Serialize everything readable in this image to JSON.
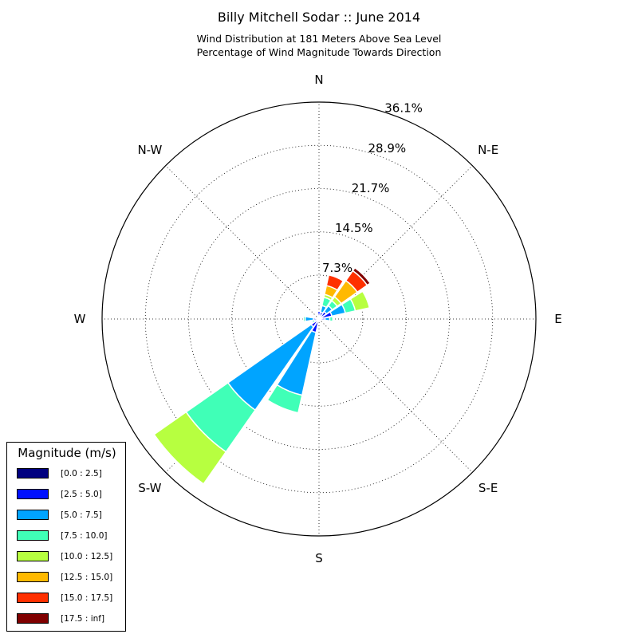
{
  "chart_data": {
    "type": "windrose",
    "title": "Billy Mitchell Sodar :: June 2014",
    "subtitle_lines": [
      "Wind Distribution at 181 Meters Above Sea Level",
      "Percentage of Wind Magnitude Towards Direction"
    ],
    "radial_unit": "%",
    "radial_ticks": [
      "7.3%",
      "14.5%",
      "21.7%",
      "28.9%",
      "36.1%"
    ],
    "radial_tick_values": [
      7.3,
      14.5,
      21.7,
      28.9,
      36.1
    ],
    "radial_max": 36.1,
    "direction_labels": [
      "N",
      "N-E",
      "E",
      "S-E",
      "S",
      "S-W",
      "W",
      "N-W"
    ],
    "legend": {
      "title": "Magnitude (m/s)",
      "bins": [
        "[0.0 : 2.5]",
        "[2.5 : 5.0]",
        "[5.0 : 7.5]",
        "[7.5 : 10.0]",
        "[10.0 : 12.5]",
        "[12.5 : 15.0]",
        "[15.0 : 17.5]",
        "[17.5 : inf]"
      ],
      "colors": [
        "#000080",
        "#0010ff",
        "#00a4ff",
        "#40ffb7",
        "#b7ff40",
        "#ffb900",
        "#ff3000",
        "#800000"
      ]
    },
    "series_unit": "cumulative percent at outer edge of each magnitude bin",
    "sectors": [
      {
        "direction_deg": 0,
        "cumulative": [
          0.3,
          1.3,
          1.3,
          1.3,
          1.3,
          1.3,
          1.3,
          1.3
        ]
      },
      {
        "direction_deg": 22.5,
        "cumulative": [
          0.3,
          1.2,
          2.3,
          3.7,
          4.2,
          5.7,
          7.5,
          7.5
        ]
      },
      {
        "direction_deg": 45,
        "cumulative": [
          0.3,
          1.5,
          2.7,
          3.7,
          4.5,
          7.8,
          9.8,
          10.4
        ]
      },
      {
        "direction_deg": 67.5,
        "cumulative": [
          0.3,
          2.2,
          4.5,
          6.2,
          8.6,
          8.6,
          8.6,
          8.6
        ]
      },
      {
        "direction_deg": 90,
        "cumulative": [
          0.3,
          1.0,
          1.8,
          2.3,
          2.3,
          2.3,
          2.3,
          2.3
        ]
      },
      {
        "direction_deg": 112.5,
        "cumulative": [
          0.3,
          0.3,
          0.3,
          0.3,
          0.3,
          0.3,
          0.3,
          0.3
        ]
      },
      {
        "direction_deg": 135,
        "cumulative": [
          0.3,
          0.3,
          0.3,
          0.3,
          0.3,
          0.3,
          0.3,
          0.3
        ]
      },
      {
        "direction_deg": 157.5,
        "cumulative": [
          0.3,
          0.3,
          0.3,
          0.3,
          0.3,
          0.3,
          0.3,
          0.3
        ]
      },
      {
        "direction_deg": 180,
        "cumulative": [
          0.3,
          0.3,
          0.3,
          0.3,
          0.3,
          0.3,
          0.3,
          0.3
        ]
      },
      {
        "direction_deg": 202.5,
        "cumulative": [
          0.3,
          2.3,
          13.0,
          16.0,
          16.0,
          16.0,
          16.0,
          16.0
        ]
      },
      {
        "direction_deg": 225,
        "cumulative": [
          0.3,
          1.6,
          18.5,
          27.0,
          33.5,
          33.5,
          33.5,
          33.5
        ]
      },
      {
        "direction_deg": 247.5,
        "cumulative": [
          0.3,
          0.5,
          0.8,
          1.2,
          1.2,
          1.2,
          1.2,
          1.2
        ]
      },
      {
        "direction_deg": 270,
        "cumulative": [
          0.3,
          0.9,
          2.3,
          2.6,
          2.6,
          2.6,
          2.6,
          2.6
        ]
      },
      {
        "direction_deg": 292.5,
        "cumulative": [
          0.3,
          0.3,
          0.3,
          0.3,
          0.3,
          0.3,
          0.3,
          0.3
        ]
      },
      {
        "direction_deg": 315,
        "cumulative": [
          0.3,
          0.3,
          0.3,
          0.3,
          0.3,
          0.3,
          0.3,
          0.3
        ]
      },
      {
        "direction_deg": 337.5,
        "cumulative": [
          0.3,
          0.3,
          0.3,
          0.3,
          0.3,
          0.3,
          0.3,
          0.3
        ]
      }
    ]
  }
}
